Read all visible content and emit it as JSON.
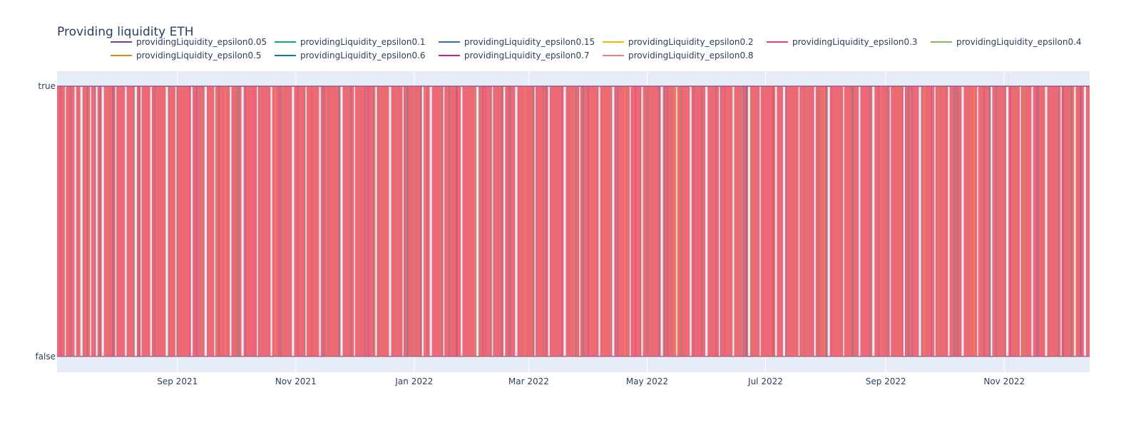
{
  "chart_data": {
    "type": "line",
    "title": "Providing liquidity ETH",
    "xlabel": "",
    "ylabel": "",
    "x_range": [
      "2021-07-01",
      "2022-12-15"
    ],
    "x_ticks": [
      {
        "date": "2021-09-01",
        "label": "Sep 2021"
      },
      {
        "date": "2021-11-01",
        "label": "Nov 2021"
      },
      {
        "date": "2022-01-01",
        "label": "Jan 2022"
      },
      {
        "date": "2022-03-01",
        "label": "Mar 2022"
      },
      {
        "date": "2022-05-01",
        "label": "May 2022"
      },
      {
        "date": "2022-07-01",
        "label": "Jul 2022"
      },
      {
        "date": "2022-09-01",
        "label": "Sep 2022"
      },
      {
        "date": "2022-11-01",
        "label": "Nov 2022"
      }
    ],
    "y_categories": [
      "false",
      "true"
    ],
    "grid": true,
    "legend_placement": "top",
    "plot_bgcolor": "#e5ecf6",
    "series": [
      {
        "name": "providingLiquidity_epsilon0.05",
        "color": "#7f3c8d"
      },
      {
        "name": "providingLiquidity_epsilon0.1",
        "color": "#11a579"
      },
      {
        "name": "providingLiquidity_epsilon0.15",
        "color": "#3969ac"
      },
      {
        "name": "providingLiquidity_epsilon0.2",
        "color": "#f2b701"
      },
      {
        "name": "providingLiquidity_epsilon0.3",
        "color": "#e73f74"
      },
      {
        "name": "providingLiquidity_epsilon0.4",
        "color": "#80ba5a"
      },
      {
        "name": "providingLiquidity_epsilon0.5",
        "color": "#e68310"
      },
      {
        "name": "providingLiquidity_epsilon0.6",
        "color": "#008695"
      },
      {
        "name": "providingLiquidity_epsilon0.7",
        "color": "#cf1c90"
      },
      {
        "name": "providingLiquidity_epsilon0.8",
        "color": "#f97b72"
      }
    ],
    "overlap_fill_color": "#ec6a76",
    "gaps": [
      "2021-07-05",
      "2021-07-10",
      "2021-07-13",
      "2021-07-18",
      "2021-07-21",
      "2021-07-24",
      "2021-07-31",
      "2021-08-05",
      "2021-08-10",
      "2021-08-13",
      "2021-08-18",
      "2021-08-26",
      "2021-08-31",
      "2021-09-08",
      "2021-09-15",
      "2021-09-20",
      "2021-09-28",
      "2021-10-04",
      "2021-10-12",
      "2021-10-19",
      "2021-10-30",
      "2021-11-06",
      "2021-11-13",
      "2021-11-24",
      "2021-12-01",
      "2021-12-12",
      "2021-12-19",
      "2021-12-26",
      "2022-01-05",
      "2022-01-09",
      "2022-01-16",
      "2022-01-25",
      "2022-02-02",
      "2022-02-10",
      "2022-02-16",
      "2022-02-22",
      "2022-03-04",
      "2022-03-11",
      "2022-03-19",
      "2022-03-27",
      "2022-04-06",
      "2022-04-13",
      "2022-04-22",
      "2022-04-28",
      "2022-05-08",
      "2022-05-16",
      "2022-05-23",
      "2022-05-31",
      "2022-06-07",
      "2022-06-14",
      "2022-06-22",
      "2022-06-28",
      "2022-07-06",
      "2022-07-10",
      "2022-07-18",
      "2022-07-26",
      "2022-08-02",
      "2022-08-10",
      "2022-08-18",
      "2022-08-25",
      "2022-09-03",
      "2022-09-10",
      "2022-09-18",
      "2022-09-26",
      "2022-10-03",
      "2022-10-10",
      "2022-10-18",
      "2022-10-25",
      "2022-11-02",
      "2022-11-09",
      "2022-11-15",
      "2022-11-22",
      "2022-11-30",
      "2022-12-07",
      "2022-12-12"
    ]
  }
}
